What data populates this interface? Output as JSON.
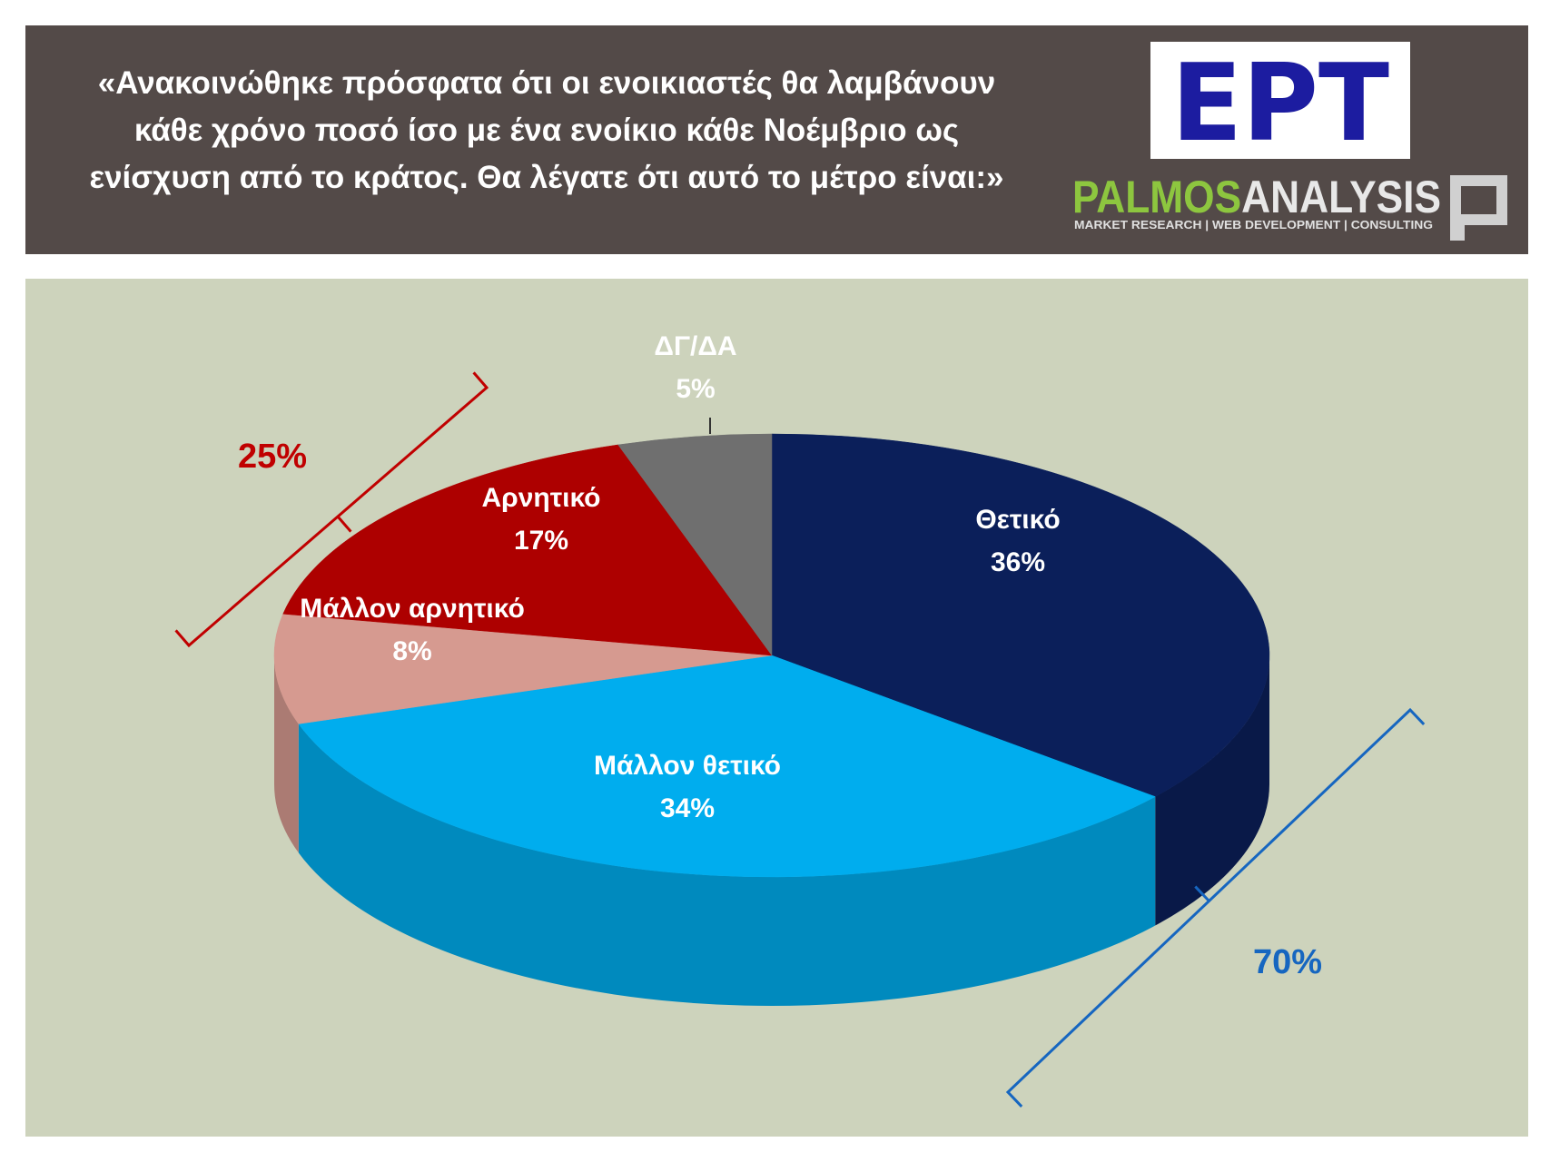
{
  "header": {
    "title": [
      "«Ανακοινώθηκε πρόσφατα ότι οι ενοικιαστές θα λαμβάνουν",
      "κάθε χρόνο ποσό ίσο με ένα ενοίκιο κάθε Νοέμβριο ως",
      "ενίσχυση από το κράτος. Θα λέγατε ότι αυτό το μέτρο είναι:»"
    ]
  },
  "logos": {
    "ert": "ΕΡΤ",
    "palmos": "PALMOS",
    "analysis": "ANALYSIS",
    "tagline": "MARKET RESEARCH | WEB DEVELOPMENT | CONSULTING"
  },
  "chart_data": {
    "type": "pie",
    "categories": [
      "Θετικό",
      "Μάλλον θετικό",
      "Μάλλον αρνητικό",
      "Αρνητικό",
      "ΔΓ/ΔΑ"
    ],
    "values": [
      36,
      34,
      8,
      17,
      5
    ],
    "value_labels": [
      "36%",
      "34%",
      "8%",
      "17%",
      "5%"
    ],
    "colors": [
      "#0b1f5a",
      "#00adee",
      "#d69a90",
      "#ad0000",
      "#6f6f6f"
    ],
    "annotations": [
      {
        "value": 25,
        "label": "25%",
        "color": "#c00000"
      },
      {
        "value": 70,
        "label": "70%",
        "color": "#1666c0"
      }
    ]
  }
}
